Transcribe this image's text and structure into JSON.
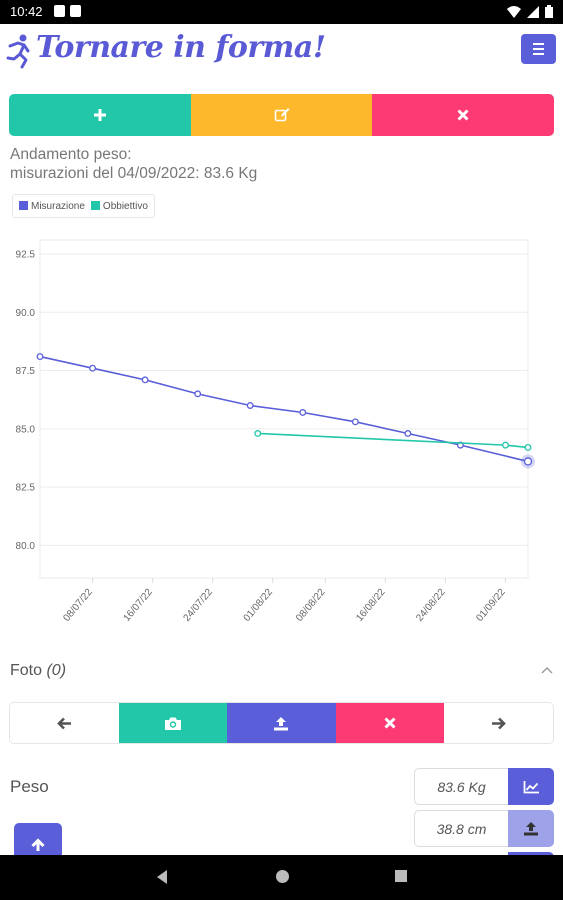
{
  "status_bar": {
    "time": "10:42"
  },
  "header": {
    "title": "Tornare in forma!"
  },
  "summary": {
    "line1": "Andamento peso:",
    "line2": "misurazioni del 04/09/2022: 83.6 Kg"
  },
  "legend": {
    "items": [
      {
        "label": "Misurazione",
        "color": "#5a5fd9"
      },
      {
        "label": "Obbiettivo",
        "color": "#22c7a9"
      }
    ]
  },
  "chart_data": {
    "type": "line",
    "title": "",
    "xlabel": "",
    "ylabel": "",
    "x_tick_labels": [
      "08/07/22",
      "16/07/22",
      "24/07/22",
      "01/08/22",
      "08/08/22",
      "16/08/22",
      "24/08/22",
      "01/09/22"
    ],
    "y_tick_labels": [
      "92.5",
      "90.0",
      "87.5",
      "85.0",
      "82.5",
      "80.0"
    ],
    "ylim": [
      78.6,
      93.1
    ],
    "xlim": [
      "2022-07-01",
      "2022-09-04"
    ],
    "grid": true,
    "legend_position": "top-left",
    "series": [
      {
        "name": "Misurazione",
        "color": "#5a5fd9",
        "points": [
          {
            "x": "2022-07-01",
            "y": 88.1
          },
          {
            "x": "2022-07-08",
            "y": 87.6
          },
          {
            "x": "2022-07-15",
            "y": 87.1
          },
          {
            "x": "2022-07-22",
            "y": 86.5
          },
          {
            "x": "2022-07-29",
            "y": 86.0
          },
          {
            "x": "2022-08-05",
            "y": 85.7
          },
          {
            "x": "2022-08-12",
            "y": 85.3
          },
          {
            "x": "2022-08-19",
            "y": 84.8
          },
          {
            "x": "2022-08-26",
            "y": 84.3
          },
          {
            "x": "2022-09-04",
            "y": 83.6
          }
        ]
      },
      {
        "name": "Obbiettivo",
        "color": "#22c7a9",
        "points": [
          {
            "x": "2022-07-30",
            "y": 84.8
          },
          {
            "x": "2022-09-01",
            "y": 84.3
          },
          {
            "x": "2022-09-04",
            "y": 84.2
          }
        ]
      }
    ]
  },
  "photos": {
    "label": "Foto",
    "count": "(0)"
  },
  "fields": [
    {
      "label": "Peso",
      "value": "83.6 Kg"
    },
    {
      "label": "",
      "value": "38.8 cm"
    },
    {
      "label": "",
      "value": ""
    }
  ],
  "colors": {
    "primary": "#5a5fd9",
    "teal": "#22c7a9",
    "amber": "#fdb82c",
    "pink": "#fd3a74"
  }
}
